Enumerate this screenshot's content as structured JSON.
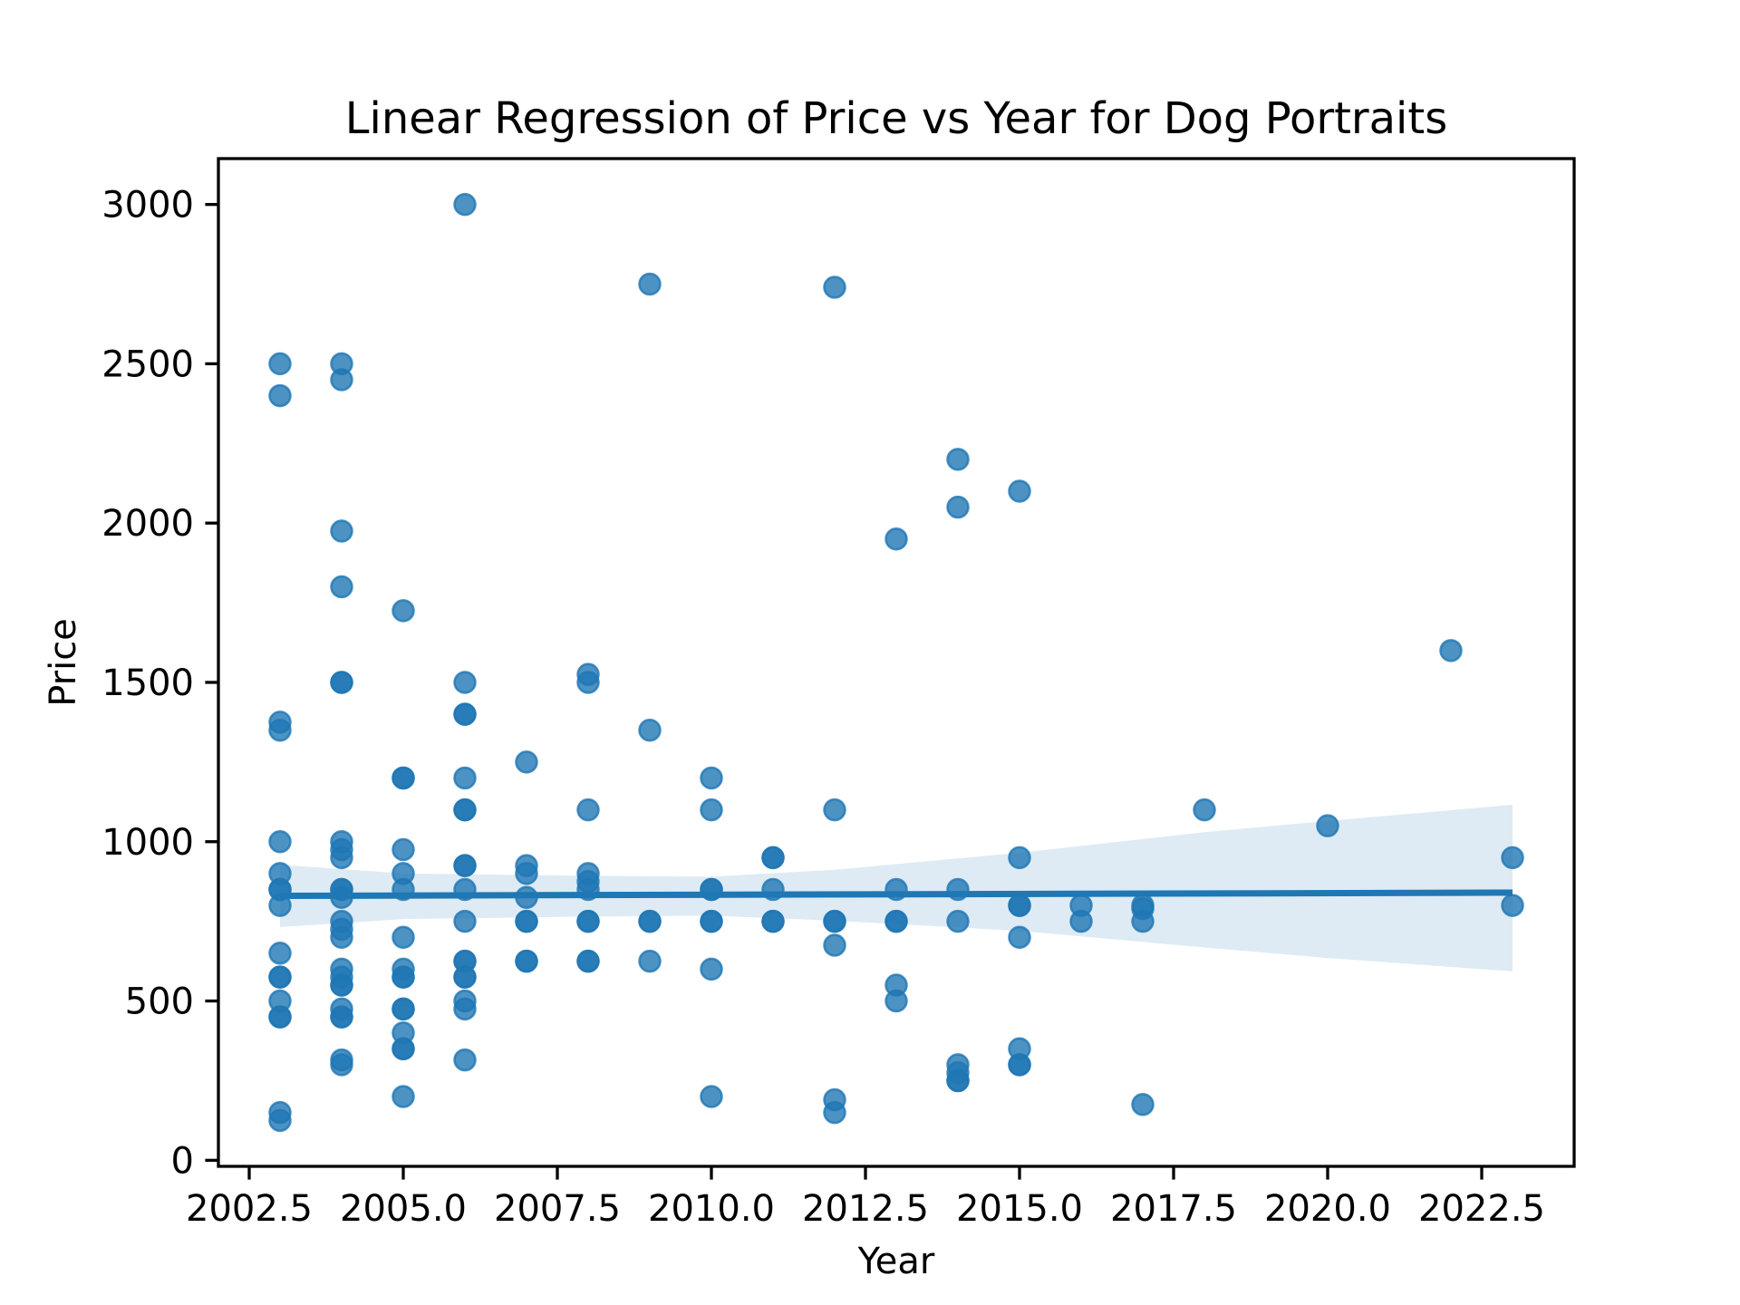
{
  "chart_data": {
    "type": "scatter",
    "title": "Linear Regression of Price vs Year for Dog Portraits",
    "xlabel": "Year",
    "ylabel": "Price",
    "xlim": [
      2002,
      2024
    ],
    "ylim": [
      -19,
      3144
    ],
    "xticks": [
      2002.5,
      2005.0,
      2007.5,
      2010.0,
      2012.5,
      2015.0,
      2017.5,
      2020.0,
      2022.5
    ],
    "xtick_labels": [
      "2002.5",
      "2005.0",
      "2007.5",
      "2010.0",
      "2012.5",
      "2015.0",
      "2017.5",
      "2020.0",
      "2022.5"
    ],
    "yticks": [
      0,
      500,
      1000,
      1500,
      2000,
      2500,
      3000
    ],
    "ytick_labels": [
      "0",
      "500",
      "1000",
      "1500",
      "2000",
      "2500",
      "3000"
    ],
    "grid": false,
    "colors": {
      "points": "#1f77b4",
      "line": "#1f77b4",
      "band": "#1f77b4"
    },
    "points": {
      "2003": [
        2500,
        2400,
        1375,
        1350,
        1000,
        900,
        850,
        850,
        800,
        650,
        575,
        575,
        500,
        450,
        450,
        150,
        125
      ],
      "2004": [
        2500,
        2450,
        1975,
        1800,
        1500,
        1500,
        1000,
        975,
        950,
        850,
        850,
        825,
        750,
        725,
        700,
        600,
        575,
        550,
        550,
        475,
        450,
        450,
        315,
        300
      ],
      "2005": [
        1725,
        1200,
        1200,
        975,
        900,
        850,
        700,
        600,
        575,
        575,
        475,
        475,
        400,
        350,
        350,
        200
      ],
      "2006": [
        3000,
        1500,
        1400,
        1400,
        1200,
        1100,
        1100,
        925,
        925,
        850,
        750,
        625,
        625,
        575,
        575,
        500,
        475,
        315
      ],
      "2007": [
        1250,
        925,
        900,
        825,
        750,
        750,
        625,
        625
      ],
      "2008": [
        1525,
        1500,
        1100,
        900,
        875,
        850,
        750,
        750,
        625,
        625
      ],
      "2009": [
        2750,
        1350,
        750,
        750,
        625
      ],
      "2010": [
        1200,
        1100,
        850,
        850,
        750,
        750,
        600,
        200
      ],
      "2011": [
        950,
        950,
        850,
        750,
        750
      ],
      "2012": [
        2740,
        1100,
        750,
        750,
        675,
        190,
        150
      ],
      "2013": [
        1950,
        850,
        750,
        750,
        550,
        500
      ],
      "2014": [
        2200,
        2050,
        850,
        750,
        300,
        275,
        250,
        250
      ],
      "2015": [
        2100,
        950,
        800,
        800,
        700,
        350,
        300,
        300
      ],
      "2016": [
        800,
        750
      ],
      "2017": [
        800,
        790,
        750,
        175
      ],
      "2018": [
        1100
      ],
      "2020": [
        1050
      ],
      "2022": [
        1600
      ],
      "2023": [
        950,
        800
      ]
    },
    "regression_line": {
      "x": [
        2003,
        2023
      ],
      "y": [
        830,
        840
      ]
    },
    "confidence_band": {
      "x": [
        2003,
        2005,
        2008,
        2010,
        2012,
        2015,
        2018,
        2020,
        2023
      ],
      "lower": [
        732,
        757,
        765,
        768,
        752,
        720,
        668,
        635,
        593
      ],
      "upper": [
        928,
        900,
        893,
        890,
        912,
        965,
        1030,
        1065,
        1116
      ]
    }
  }
}
